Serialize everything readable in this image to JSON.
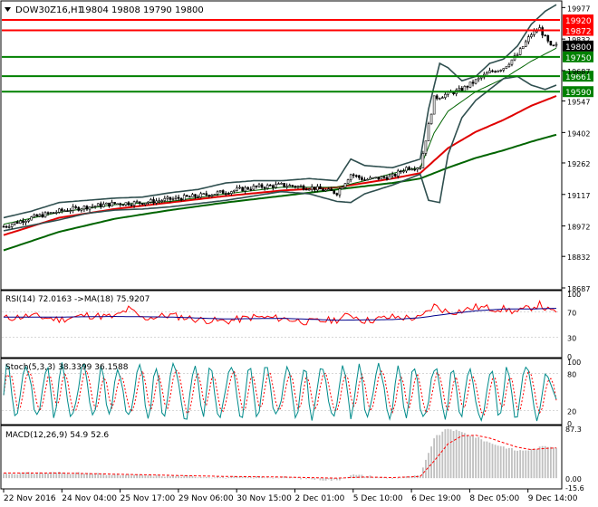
{
  "header": {
    "symbol": "DOW30Z16,H1",
    "ohlc": "19804 19808 19790 19800",
    "arrow": "triangle-down-icon"
  },
  "colors": {
    "candle": "#000000",
    "bollinger": "#2f4f4f",
    "ma_fast_green": "#006400",
    "ma_red": "#e00000",
    "ma_slow_green": "#006400",
    "resistance": "#ff0000",
    "support": "#008000",
    "rsi": "#ff0000",
    "rsi_ma": "#00008b",
    "stoch_main": "#008b8b",
    "stoch_signal": "#ff0000",
    "macd_hist": "#c0c0c0",
    "macd_signal": "#ff0000",
    "price_tag": "#000000"
  },
  "chart_data": [
    {
      "type": "line",
      "panel": "price",
      "y_ticks": [
        19977,
        19832,
        19687,
        19547,
        19402,
        19262,
        19117,
        18972,
        18832,
        18687
      ],
      "ylim": [
        18687,
        19995
      ],
      "levels": [
        {
          "value": 19920,
          "label": "19920",
          "kind": "resistance"
        },
        {
          "value": 19872,
          "label": "19872",
          "kind": "resistance"
        },
        {
          "value": 19750,
          "label": "19750",
          "kind": "support"
        },
        {
          "value": 19661,
          "label": "19661",
          "kind": "support"
        },
        {
          "value": 19590,
          "label": "19590",
          "kind": "support"
        }
      ],
      "current_price": {
        "value": 19800,
        "label": "19800"
      },
      "x_labels": [
        "22 Nov 2016",
        "24 Nov 04:00",
        "25 Nov 17:00",
        "29 Nov 06:00",
        "30 Nov 15:00",
        "2 Dec 01:00",
        "5 Dec 10:00",
        "6 Dec 19:00",
        "8 Dec 05:00",
        "9 Dec 14:00"
      ],
      "x_count": 200,
      "close_path": [
        [
          0,
          18970
        ],
        [
          10,
          19010
        ],
        [
          20,
          19040
        ],
        [
          30,
          19060
        ],
        [
          40,
          19075
        ],
        [
          50,
          19080
        ],
        [
          60,
          19095
        ],
        [
          70,
          19110
        ],
        [
          80,
          19130
        ],
        [
          90,
          19150
        ],
        [
          100,
          19160
        ],
        [
          110,
          19150
        ],
        [
          120,
          19125
        ],
        [
          125,
          19210
        ],
        [
          130,
          19185
        ],
        [
          140,
          19200
        ],
        [
          145,
          19240
        ],
        [
          150,
          19245
        ],
        [
          155,
          19560
        ],
        [
          160,
          19580
        ],
        [
          165,
          19600
        ],
        [
          170,
          19640
        ],
        [
          175,
          19680
        ],
        [
          180,
          19700
        ],
        [
          185,
          19760
        ],
        [
          190,
          19855
        ],
        [
          193,
          19880
        ],
        [
          197,
          19795
        ],
        [
          199,
          19800
        ]
      ],
      "ma_slow_path": [
        [
          0,
          18860
        ],
        [
          20,
          18945
        ],
        [
          40,
          19005
        ],
        [
          60,
          19045
        ],
        [
          80,
          19080
        ],
        [
          100,
          19110
        ],
        [
          120,
          19140
        ],
        [
          140,
          19170
        ],
        [
          150,
          19190
        ],
        [
          160,
          19240
        ],
        [
          170,
          19285
        ],
        [
          180,
          19320
        ],
        [
          190,
          19360
        ],
        [
          199,
          19392
        ]
      ],
      "ma_red_path": [
        [
          0,
          18930
        ],
        [
          20,
          19010
        ],
        [
          40,
          19050
        ],
        [
          60,
          19080
        ],
        [
          80,
          19110
        ],
        [
          100,
          19135
        ],
        [
          120,
          19150
        ],
        [
          140,
          19190
        ],
        [
          150,
          19215
        ],
        [
          160,
          19330
        ],
        [
          170,
          19405
        ],
        [
          180,
          19460
        ],
        [
          190,
          19525
        ],
        [
          199,
          19570
        ]
      ],
      "ma_fast_path": [
        [
          0,
          18980
        ],
        [
          20,
          19035
        ],
        [
          40,
          19070
        ],
        [
          60,
          19085
        ],
        [
          80,
          19120
        ],
        [
          100,
          19150
        ],
        [
          120,
          19150
        ],
        [
          130,
          19180
        ],
        [
          145,
          19230
        ],
        [
          150,
          19240
        ],
        [
          155,
          19400
        ],
        [
          160,
          19500
        ],
        [
          170,
          19590
        ],
        [
          180,
          19650
        ],
        [
          190,
          19730
        ],
        [
          199,
          19790
        ]
      ],
      "bb_upper_path": [
        [
          0,
          19010
        ],
        [
          10,
          19040
        ],
        [
          20,
          19080
        ],
        [
          30,
          19090
        ],
        [
          40,
          19100
        ],
        [
          50,
          19105
        ],
        [
          60,
          19125
        ],
        [
          70,
          19140
        ],
        [
          80,
          19170
        ],
        [
          90,
          19180
        ],
        [
          100,
          19180
        ],
        [
          110,
          19190
        ],
        [
          120,
          19180
        ],
        [
          125,
          19280
        ],
        [
          130,
          19250
        ],
        [
          140,
          19240
        ],
        [
          150,
          19280
        ],
        [
          153,
          19510
        ],
        [
          157,
          19720
        ],
        [
          160,
          19700
        ],
        [
          165,
          19640
        ],
        [
          170,
          19660
        ],
        [
          175,
          19720
        ],
        [
          180,
          19740
        ],
        [
          185,
          19800
        ],
        [
          190,
          19900
        ],
        [
          195,
          19960
        ],
        [
          199,
          19990
        ]
      ],
      "bb_lower_path": [
        [
          0,
          18950
        ],
        [
          10,
          18975
        ],
        [
          20,
          19000
        ],
        [
          30,
          19030
        ],
        [
          40,
          19045
        ],
        [
          50,
          19050
        ],
        [
          60,
          19060
        ],
        [
          70,
          19075
        ],
        [
          80,
          19090
        ],
        [
          90,
          19110
        ],
        [
          100,
          19130
        ],
        [
          110,
          19120
        ],
        [
          120,
          19085
        ],
        [
          125,
          19080
        ],
        [
          130,
          19120
        ],
        [
          140,
          19160
        ],
        [
          150,
          19210
        ],
        [
          153,
          19090
        ],
        [
          157,
          19080
        ],
        [
          160,
          19300
        ],
        [
          165,
          19470
        ],
        [
          170,
          19550
        ],
        [
          175,
          19600
        ],
        [
          180,
          19650
        ],
        [
          185,
          19660
        ],
        [
          190,
          19620
        ],
        [
          195,
          19600
        ],
        [
          199,
          19620
        ]
      ]
    },
    {
      "type": "line",
      "panel": "rsi",
      "title": "RSI(14) 72.0163  ->MA(18) 75.9207",
      "y_ticks": [
        100,
        70,
        30,
        0
      ],
      "ylim": [
        0,
        100
      ],
      "rsi_path": [
        [
          0,
          60
        ],
        [
          10,
          64
        ],
        [
          20,
          58
        ],
        [
          30,
          65
        ],
        [
          40,
          62
        ],
        [
          45,
          75
        ],
        [
          50,
          60
        ],
        [
          60,
          65
        ],
        [
          70,
          58
        ],
        [
          80,
          55
        ],
        [
          90,
          62
        ],
        [
          100,
          60
        ],
        [
          110,
          54
        ],
        [
          120,
          58
        ],
        [
          125,
          66
        ],
        [
          130,
          56
        ],
        [
          140,
          62
        ],
        [
          150,
          60
        ],
        [
          155,
          80
        ],
        [
          160,
          70
        ],
        [
          165,
          72
        ],
        [
          170,
          78
        ],
        [
          175,
          76
        ],
        [
          180,
          75
        ],
        [
          185,
          70
        ],
        [
          190,
          78
        ],
        [
          193,
          82
        ],
        [
          197,
          70
        ],
        [
          199,
          72
        ]
      ],
      "ma_path": [
        [
          0,
          62
        ],
        [
          20,
          62
        ],
        [
          40,
          63
        ],
        [
          60,
          62
        ],
        [
          80,
          59
        ],
        [
          100,
          60
        ],
        [
          120,
          57
        ],
        [
          140,
          58
        ],
        [
          150,
          61
        ],
        [
          160,
          67
        ],
        [
          170,
          72
        ],
        [
          180,
          75
        ],
        [
          190,
          75
        ],
        [
          199,
          76
        ]
      ]
    },
    {
      "type": "line",
      "panel": "stochastic",
      "title": "Stoch(5,3,3) 38.3399 36.1588",
      "y_ticks": [
        100,
        80,
        20,
        0
      ],
      "ylim": [
        0,
        100
      ],
      "cycles": 30,
      "main_value": 38.3399,
      "signal_value": 36.1588
    },
    {
      "type": "bar",
      "panel": "macd",
      "title": "MACD(12,26,9) 54.9 52.6",
      "y_ticks": [
        "87.3",
        "0.00",
        "-15.6"
      ],
      "ylim": [
        -15.6,
        87.3
      ],
      "hist_path": [
        [
          0,
          8
        ],
        [
          20,
          10
        ],
        [
          40,
          6
        ],
        [
          60,
          4
        ],
        [
          80,
          2
        ],
        [
          100,
          2
        ],
        [
          120,
          -4
        ],
        [
          125,
          6
        ],
        [
          130,
          4
        ],
        [
          140,
          0
        ],
        [
          150,
          4
        ],
        [
          155,
          70
        ],
        [
          160,
          87
        ],
        [
          165,
          80
        ],
        [
          170,
          72
        ],
        [
          175,
          62
        ],
        [
          180,
          55
        ],
        [
          185,
          48
        ],
        [
          190,
          50
        ],
        [
          195,
          56
        ],
        [
          199,
          55
        ]
      ],
      "signal_path": [
        [
          0,
          9
        ],
        [
          20,
          9
        ],
        [
          40,
          7
        ],
        [
          60,
          5
        ],
        [
          80,
          3
        ],
        [
          100,
          2
        ],
        [
          120,
          0
        ],
        [
          130,
          2
        ],
        [
          140,
          1
        ],
        [
          150,
          3
        ],
        [
          155,
          30
        ],
        [
          160,
          60
        ],
        [
          165,
          74
        ],
        [
          170,
          75
        ],
        [
          175,
          70
        ],
        [
          180,
          62
        ],
        [
          185,
          54
        ],
        [
          190,
          50
        ],
        [
          195,
          52
        ],
        [
          199,
          53
        ]
      ]
    }
  ]
}
